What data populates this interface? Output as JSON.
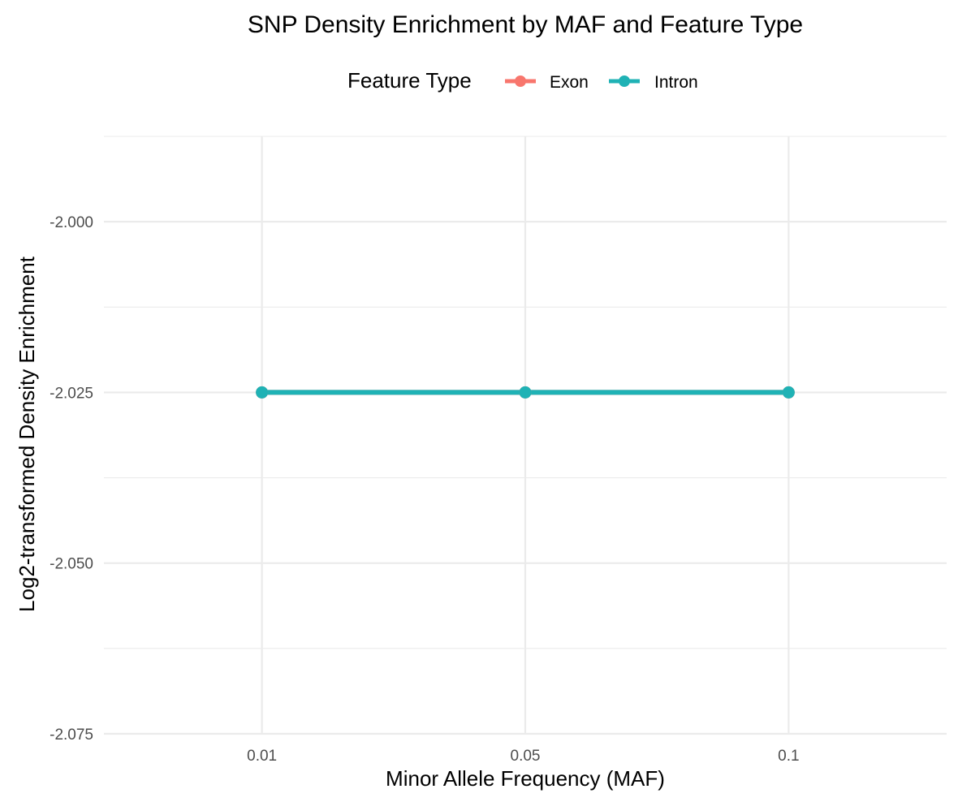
{
  "chart_data": {
    "type": "line",
    "title": "SNP Density Enrichment by MAF and Feature Type",
    "xlabel": "Minor Allele Frequency (MAF)",
    "ylabel": "Log2-transformed Density Enrichment",
    "categories": [
      "0.01",
      "0.05",
      "0.1"
    ],
    "ylim": [
      -2.075,
      -1.9875
    ],
    "yticks": [
      "-2.000",
      "-2.025",
      "-2.050",
      "-2.075"
    ],
    "ytick_values": [
      -2.0,
      -2.025,
      -2.05,
      -2.075
    ],
    "y_minor_values": [
      -1.9875,
      -2.0125,
      -2.0375,
      -2.0625
    ],
    "grid": true,
    "legend": {
      "title": "Feature Type",
      "position": "top"
    },
    "series": [
      {
        "name": "Exon",
        "color": "#F8766D",
        "values": [
          -2.025,
          -2.025,
          -2.025
        ]
      },
      {
        "name": "Intron",
        "color": "#1FB2B5",
        "values": [
          -2.025,
          -2.025,
          -2.025
        ]
      }
    ]
  }
}
